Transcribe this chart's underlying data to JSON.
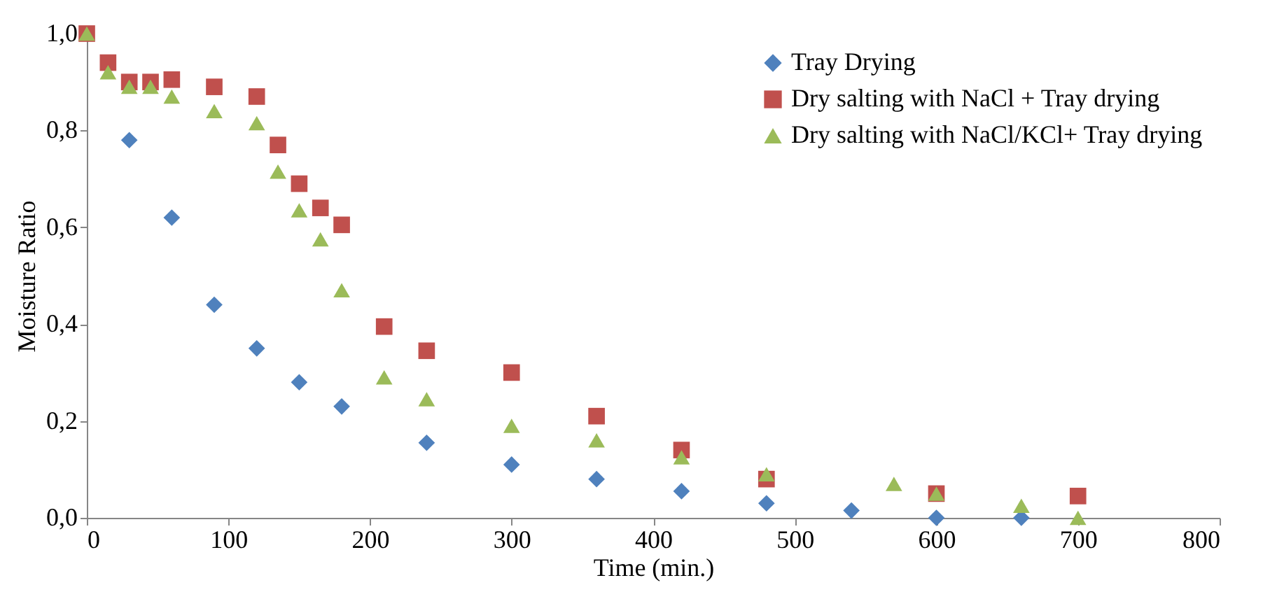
{
  "chart_data": {
    "type": "scatter",
    "xlabel": "Time (min.)",
    "ylabel": "Moisture Ratio",
    "xlim": [
      0,
      800
    ],
    "xticks": [
      0,
      100,
      200,
      300,
      400,
      500,
      600,
      700,
      800
    ],
    "ylim": [
      0,
      1
    ],
    "yticks": [
      {
        "value": 0,
        "label": "0,0"
      },
      {
        "value": 0.2,
        "label": "0,2"
      },
      {
        "value": 0.4,
        "label": "0,4"
      },
      {
        "value": 0.6,
        "label": "0,6"
      },
      {
        "value": 0.8,
        "label": "0,8"
      },
      {
        "value": 1,
        "label": "1,0"
      }
    ],
    "grid": false,
    "legend": "top right",
    "series": [
      {
        "name": "Tray Drying",
        "color": "#4f81bd",
        "marker": "diamond",
        "x": [
          30,
          60,
          90,
          120,
          150,
          180,
          240,
          300,
          360,
          420,
          480,
          540,
          600,
          660
        ],
        "values": [
          0.78,
          0.62,
          0.44,
          0.35,
          0.28,
          0.23,
          0.155,
          0.11,
          0.08,
          0.055,
          0.03,
          0.015,
          0.0,
          0.0
        ]
      },
      {
        "name": "Dry salting with NaCl + Tray drying",
        "color": "#c0504d",
        "marker": "square",
        "x": [
          0,
          15,
          30,
          45,
          60,
          90,
          120,
          135,
          150,
          165,
          180,
          210,
          240,
          300,
          360,
          420,
          480,
          600,
          700
        ],
        "values": [
          1.0,
          0.94,
          0.9,
          0.9,
          0.905,
          0.89,
          0.87,
          0.77,
          0.69,
          0.64,
          0.605,
          0.395,
          0.345,
          0.3,
          0.21,
          0.14,
          0.08,
          0.05,
          0.045
        ]
      },
      {
        "name": "Dry salting with NaCl/KCl+ Tray drying",
        "color": "#9bbb59",
        "marker": "triangle",
        "x": [
          0,
          15,
          30,
          45,
          60,
          90,
          120,
          135,
          150,
          165,
          180,
          210,
          240,
          300,
          360,
          420,
          480,
          570,
          600,
          660,
          700
        ],
        "values": [
          1.0,
          0.92,
          0.89,
          0.89,
          0.87,
          0.84,
          0.815,
          0.715,
          0.635,
          0.575,
          0.47,
          0.29,
          0.245,
          0.19,
          0.16,
          0.125,
          0.09,
          0.07,
          0.05,
          0.025,
          0.0
        ]
      }
    ]
  }
}
